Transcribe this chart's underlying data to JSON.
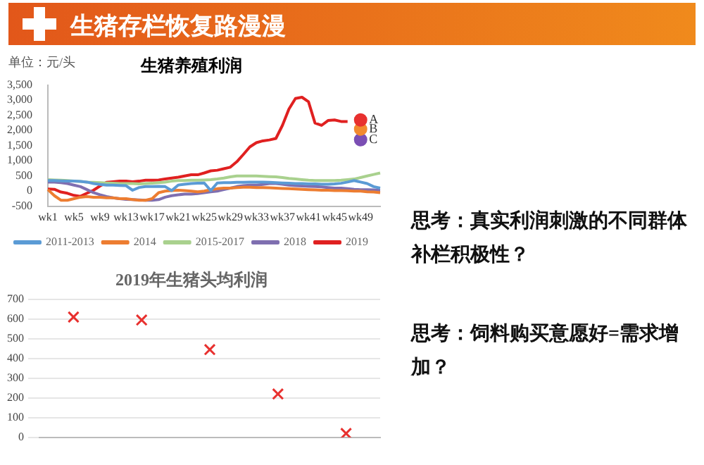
{
  "chart_data": [
    {
      "type": "line",
      "title": "生猪养殖利润",
      "ylabel": "单位：元/头",
      "categories": [
        "wk1",
        null,
        null,
        null,
        "wk5",
        null,
        null,
        null,
        "wk9",
        null,
        null,
        null,
        "wk13",
        null,
        null,
        null,
        "wk17",
        null,
        null,
        null,
        "wk21",
        null,
        null,
        null,
        "wk25",
        null,
        null,
        null,
        "wk29",
        null,
        null,
        null,
        "wk33",
        null,
        null,
        null,
        "wk37",
        null,
        null,
        null,
        "wk41",
        null,
        null,
        null,
        "wk45",
        null,
        null,
        null,
        "wk49",
        null,
        null,
        null
      ],
      "series": [
        {
          "name": "2011-2013",
          "color": "#5b9bd5",
          "values": [
            350,
            350,
            340,
            330,
            330,
            320,
            300,
            250,
            220,
            200,
            200,
            190,
            180,
            30,
            120,
            150,
            150,
            160,
            150,
            20,
            200,
            230,
            250,
            260,
            270,
            20,
            270,
            280,
            280,
            290,
            290,
            300,
            300,
            300,
            290,
            280,
            270,
            260,
            250,
            250,
            240,
            240,
            230,
            230,
            240,
            260,
            300,
            350,
            300,
            250,
            150,
            100
          ]
        },
        {
          "name": "2014",
          "color": "#ed7d31",
          "values": [
            50,
            -150,
            -300,
            -300,
            -250,
            -200,
            -180,
            -200,
            -200,
            -220,
            -220,
            -250,
            -250,
            -280,
            -300,
            -300,
            -250,
            -50,
            0,
            20,
            30,
            20,
            0,
            -20,
            0,
            50,
            80,
            100,
            100,
            120,
            130,
            130,
            120,
            120,
            110,
            100,
            90,
            80,
            70,
            60,
            50,
            40,
            30,
            30,
            20,
            20,
            10,
            0,
            0,
            -20,
            -30,
            -50
          ]
        },
        {
          "name": "2015-2017",
          "color": "#a9d18e",
          "values": [
            380,
            370,
            360,
            350,
            330,
            320,
            300,
            290,
            280,
            270,
            260,
            250,
            250,
            250,
            240,
            250,
            260,
            280,
            300,
            330,
            350,
            350,
            360,
            360,
            370,
            380,
            400,
            430,
            470,
            500,
            500,
            500,
            500,
            490,
            480,
            470,
            450,
            420,
            400,
            380,
            360,
            350,
            350,
            350,
            350,
            360,
            380,
            400,
            450,
            500,
            550,
            600
          ]
        },
        {
          "name": "2018",
          "color": "#7f6fb0",
          "values": [
            300,
            300,
            280,
            250,
            200,
            150,
            50,
            -50,
            -120,
            -180,
            -220,
            -250,
            -270,
            -280,
            -290,
            -300,
            -300,
            -280,
            -200,
            -150,
            -120,
            -100,
            -100,
            -80,
            -50,
            -20,
            0,
            50,
            100,
            150,
            180,
            200,
            200,
            220,
            250,
            250,
            230,
            200,
            180,
            170,
            160,
            150,
            140,
            120,
            100,
            100,
            80,
            60,
            50,
            50,
            40,
            30
          ]
        },
        {
          "name": "2019",
          "color": "#e02020",
          "values": [
            70,
            60,
            -30,
            -70,
            -140,
            -170,
            -70,
            30,
            170,
            290,
            310,
            330,
            330,
            310,
            330,
            360,
            360,
            370,
            400,
            430,
            460,
            500,
            540,
            540,
            600,
            670,
            690,
            740,
            790,
            970,
            1210,
            1460,
            1600,
            1660,
            1690,
            1740,
            2170,
            2710,
            3060,
            3100,
            2950,
            2250,
            2170,
            2330,
            2350,
            2300,
            2300,
            null,
            null,
            null,
            null,
            null
          ]
        },
        {
          "type": "scatter",
          "marker": "circle",
          "color": "#e8312f",
          "x": [
            "wk49"
          ],
          "values": [
            2350
          ]
        },
        {
          "type": "scatter",
          "marker": "circle",
          "color": "#f28a30",
          "x": [
            "wk49"
          ],
          "values": [
            2050
          ]
        },
        {
          "type": "scatter",
          "marker": "circle",
          "color": "#7b4fb4",
          "x": [
            "wk49"
          ],
          "values": [
            1700
          ]
        }
      ],
      "annotations": [
        {
          "text": "A",
          "x": "wk49",
          "y": 2350
        },
        {
          "text": "B",
          "x": "wk49",
          "y": 2050
        },
        {
          "text": "C",
          "x": "wk49",
          "y": 1700
        }
      ],
      "ylim": [
        -500,
        3500
      ],
      "yticks": [
        -500,
        0,
        500,
        {
          "value": 1000,
          "label": "1,000"
        },
        {
          "value": 1500,
          "label": "1,500"
        },
        {
          "value": 2000,
          "label": "2,000"
        },
        {
          "value": 2500,
          "label": "2,500"
        },
        {
          "value": 3000,
          "label": "3,000"
        },
        {
          "value": 3500,
          "label": "3,500"
        }
      ],
      "marker": "none",
      "line_style": "solid",
      "grid": false,
      "legend": "bottom"
    },
    {
      "type": "scatter",
      "title": "2019年生猪头均利润",
      "categories": [
        null,
        null,
        null,
        null,
        null
      ],
      "values": [
        610,
        595,
        445,
        220,
        20
      ],
      "color": "#e8312f",
      "marker": "cross",
      "ylim": [
        0,
        700
      ],
      "yticks": [
        0,
        100,
        200,
        300,
        400,
        500,
        600,
        700
      ],
      "grid": "y"
    },
    {
      "type": "other",
      "title": "生猪存栏恢复路漫漫",
      "annotations": [
        "思考：真实利润刺激的不同群体补栏积极性？",
        "思考：饲料购买意愿好=需求增加？"
      ]
    }
  ]
}
